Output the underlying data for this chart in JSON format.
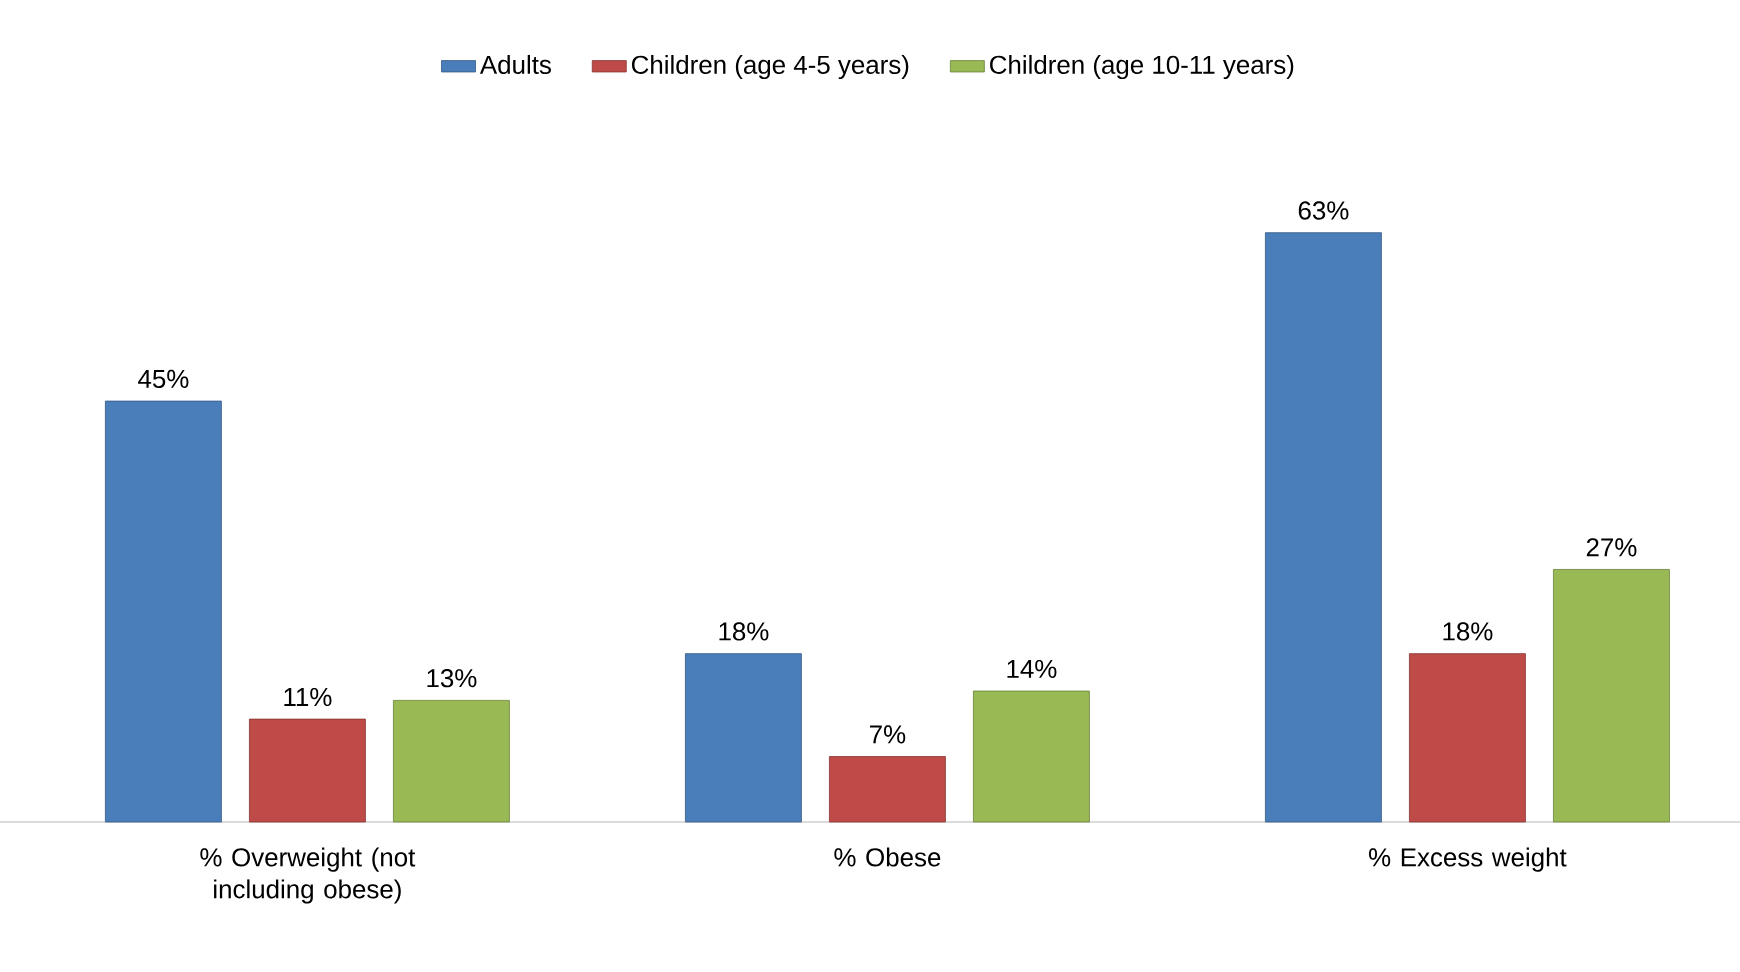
{
  "chart_data": {
    "type": "bar",
    "categories": [
      "% Overweight (not including obese)",
      "% Obese",
      "% Excess weight"
    ],
    "series": [
      {
        "name": "Adults",
        "color": "#4a7ebb",
        "values": [
          45,
          18,
          63
        ],
        "value_labels": [
          "45%",
          "18%",
          "63%"
        ]
      },
      {
        "name": "Children (age 4-5 years)",
        "color": "#be4b48",
        "values": [
          11,
          7,
          18
        ],
        "value_labels": [
          "11%",
          "7%",
          "18%"
        ]
      },
      {
        "name": "Children (age 10-11 years)",
        "color": "#98b954",
        "values": [
          13,
          14,
          27
        ],
        "value_labels": [
          "13%",
          "14%",
          "27%"
        ]
      }
    ],
    "legend": "top"
  }
}
